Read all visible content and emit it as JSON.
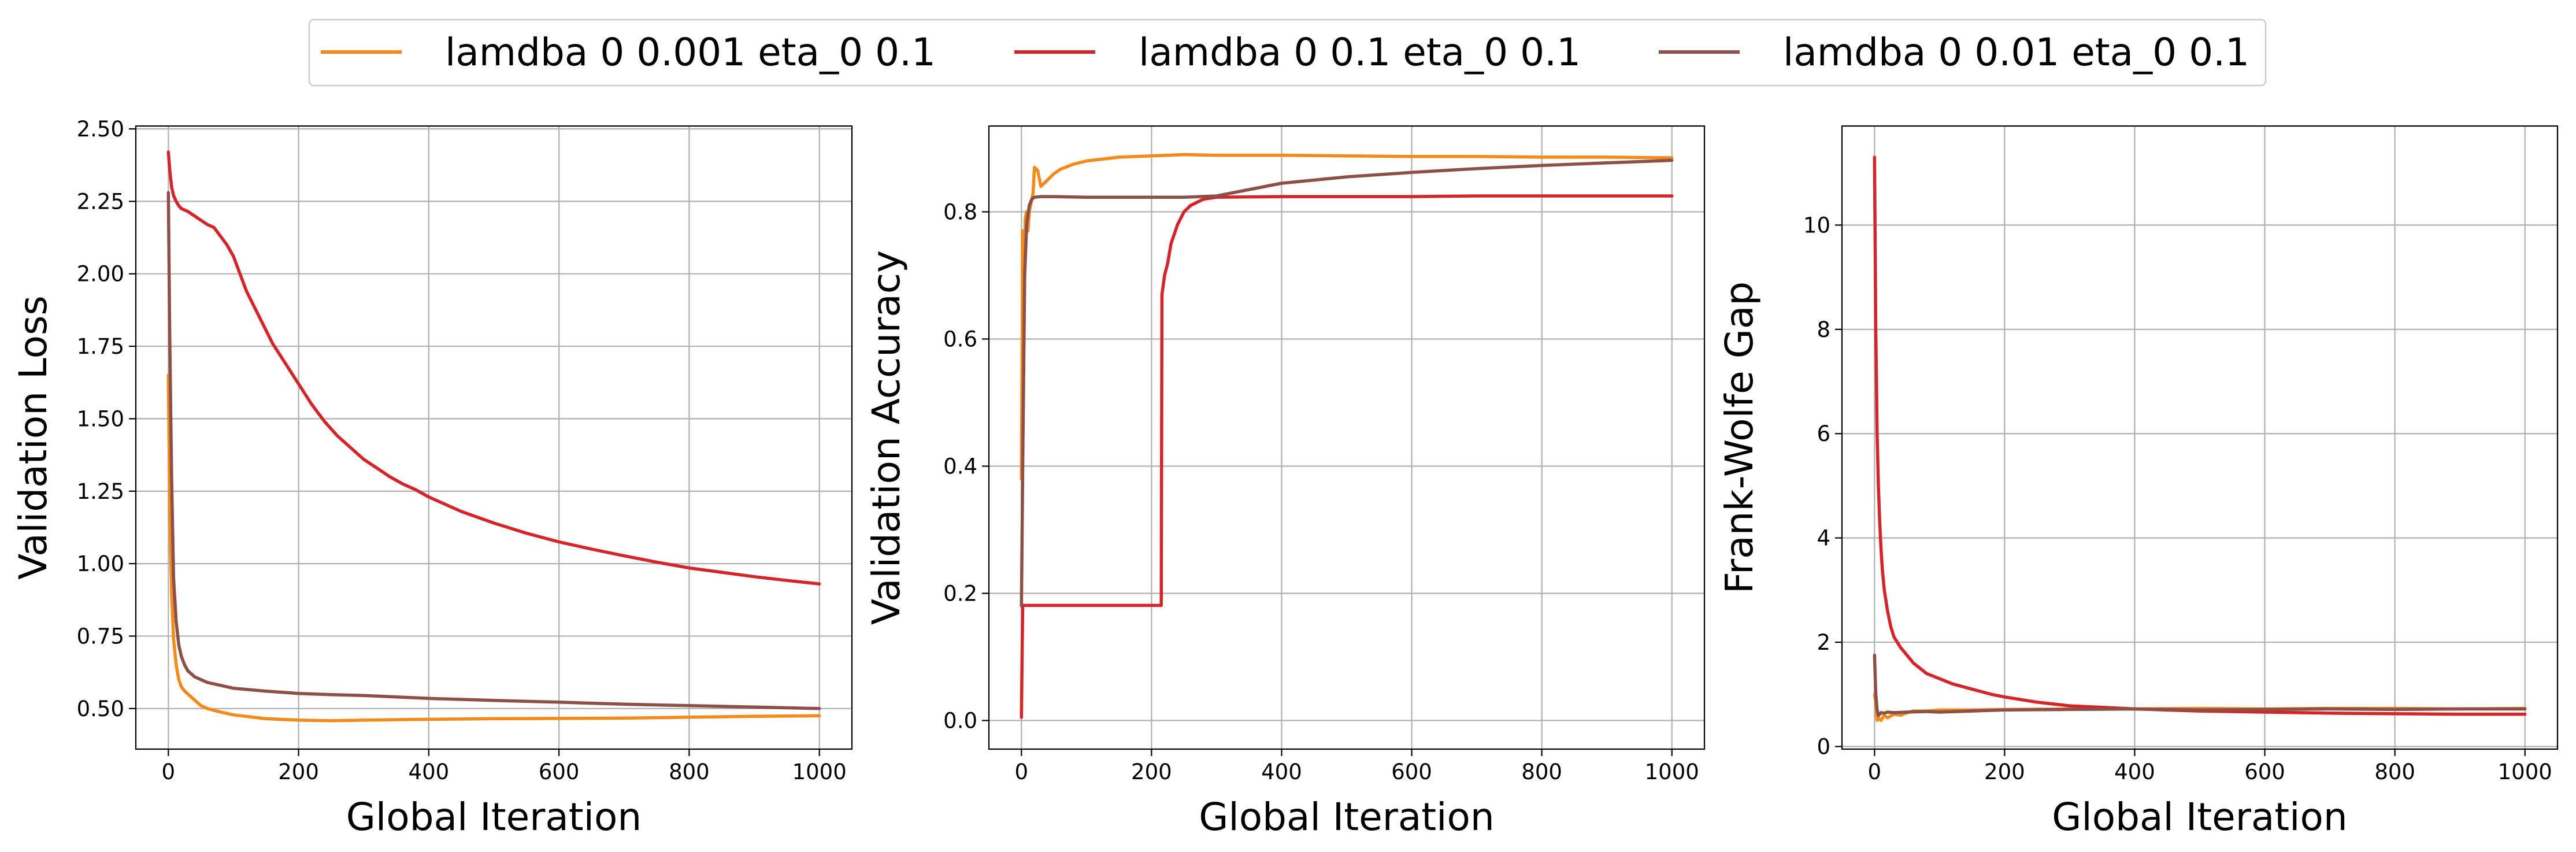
{
  "legend": {
    "entries": [
      {
        "label": "lamdba 0 0.001 eta_0 0.1",
        "color": "#f28a1e"
      },
      {
        "label": "lamdba 0 0.1 eta_0 0.1",
        "color": "#d1262a"
      },
      {
        "label": "lamdba 0 0.01 eta_0 0.1",
        "color": "#8c5048"
      }
    ]
  },
  "chart_data": [
    {
      "type": "line",
      "xlabel": "Global Iteration",
      "ylabel": "Validation Loss",
      "xlim": [
        -50,
        1050
      ],
      "ylim": [
        0.36,
        2.51
      ],
      "xticks": [
        0,
        200,
        400,
        600,
        800,
        1000
      ],
      "yticks": [
        0.5,
        0.75,
        1.0,
        1.25,
        1.5,
        1.75,
        2.0,
        2.25,
        2.5
      ],
      "ytick_labels": [
        "0.50",
        "0.75",
        "1.00",
        "1.25",
        "1.50",
        "1.75",
        "2.00",
        "2.25",
        "2.50"
      ],
      "grid": true,
      "series": [
        {
          "name": "lamdba 0 0.001 eta_0 0.1",
          "color": "#f28a1e",
          "x": [
            0,
            2,
            5,
            8,
            12,
            16,
            20,
            25,
            30,
            40,
            50,
            60,
            80,
            100,
            150,
            200,
            250,
            300,
            400,
            500,
            600,
            700,
            800,
            900,
            1000
          ],
          "y": [
            1.65,
            1.2,
            0.9,
            0.74,
            0.65,
            0.6,
            0.575,
            0.56,
            0.55,
            0.53,
            0.51,
            0.5,
            0.488,
            0.478,
            0.465,
            0.46,
            0.458,
            0.46,
            0.463,
            0.465,
            0.466,
            0.467,
            0.47,
            0.473,
            0.475
          ]
        },
        {
          "name": "lamdba 0 0.1 eta_0 0.1",
          "color": "#d1262a",
          "x": [
            0,
            2,
            5,
            8,
            12,
            16,
            20,
            30,
            40,
            50,
            60,
            70,
            80,
            90,
            100,
            110,
            120,
            140,
            160,
            180,
            200,
            220,
            240,
            260,
            280,
            300,
            320,
            340,
            360,
            380,
            400,
            450,
            500,
            550,
            600,
            650,
            700,
            750,
            800,
            850,
            900,
            950,
            1000
          ],
          "y": [
            2.42,
            2.36,
            2.3,
            2.27,
            2.25,
            2.235,
            2.225,
            2.215,
            2.2,
            2.185,
            2.17,
            2.16,
            2.13,
            2.1,
            2.06,
            2.0,
            1.94,
            1.85,
            1.76,
            1.69,
            1.62,
            1.55,
            1.49,
            1.44,
            1.4,
            1.36,
            1.33,
            1.3,
            1.275,
            1.255,
            1.23,
            1.18,
            1.14,
            1.105,
            1.075,
            1.05,
            1.027,
            1.005,
            0.985,
            0.97,
            0.955,
            0.942,
            0.93
          ]
        },
        {
          "name": "lamdba 0 0.01 eta_0 0.1",
          "color": "#8c5048",
          "x": [
            0,
            2,
            5,
            8,
            12,
            16,
            20,
            25,
            30,
            40,
            50,
            60,
            80,
            100,
            150,
            200,
            250,
            300,
            400,
            500,
            600,
            700,
            800,
            900,
            1000
          ],
          "y": [
            2.28,
            1.8,
            1.3,
            0.95,
            0.8,
            0.72,
            0.68,
            0.65,
            0.63,
            0.61,
            0.6,
            0.59,
            0.58,
            0.57,
            0.56,
            0.552,
            0.548,
            0.545,
            0.535,
            0.528,
            0.522,
            0.515,
            0.51,
            0.505,
            0.5
          ]
        }
      ]
    },
    {
      "type": "line",
      "xlabel": "Global Iteration",
      "ylabel": "Validation Accuracy",
      "xlim": [
        -50,
        1050
      ],
      "ylim": [
        -0.045,
        0.935
      ],
      "xticks": [
        0,
        200,
        400,
        600,
        800,
        1000
      ],
      "yticks": [
        0.0,
        0.2,
        0.4,
        0.6,
        0.8
      ],
      "ytick_labels": [
        "0.0",
        "0.2",
        "0.4",
        "0.6",
        "0.8"
      ],
      "grid": true,
      "series": [
        {
          "name": "lamdba 0 0.001 eta_0 0.1",
          "color": "#f28a1e",
          "x": [
            0,
            2,
            4,
            6,
            8,
            10,
            12,
            14,
            16,
            18,
            20,
            25,
            30,
            40,
            50,
            60,
            80,
            100,
            150,
            200,
            250,
            300,
            400,
            500,
            600,
            700,
            800,
            900,
            1000
          ],
          "y": [
            0.38,
            0.77,
            0.62,
            0.79,
            0.8,
            0.77,
            0.8,
            0.81,
            0.82,
            0.83,
            0.87,
            0.865,
            0.84,
            0.85,
            0.86,
            0.867,
            0.875,
            0.88,
            0.886,
            0.888,
            0.89,
            0.889,
            0.889,
            0.888,
            0.887,
            0.887,
            0.886,
            0.886,
            0.885
          ]
        },
        {
          "name": "lamdba 0 0.1 eta_0 0.1",
          "color": "#d1262a",
          "x": [
            0,
            1,
            2,
            3,
            5,
            10,
            50,
            100,
            150,
            200,
            215,
            216,
            220,
            225,
            230,
            240,
            250,
            260,
            270,
            280,
            300,
            400,
            500,
            600,
            700,
            800,
            900,
            1000
          ],
          "y": [
            0.005,
            0.1,
            0.181,
            0.181,
            0.181,
            0.181,
            0.181,
            0.181,
            0.181,
            0.181,
            0.181,
            0.67,
            0.7,
            0.72,
            0.75,
            0.78,
            0.8,
            0.81,
            0.815,
            0.82,
            0.823,
            0.824,
            0.824,
            0.824,
            0.825,
            0.825,
            0.825,
            0.825
          ]
        },
        {
          "name": "lamdba 0 0.01 eta_0 0.1",
          "color": "#8c5048",
          "x": [
            0,
            2,
            5,
            8,
            12,
            16,
            20,
            30,
            50,
            100,
            150,
            200,
            250,
            300,
            350,
            400,
            500,
            600,
            700,
            800,
            900,
            1000
          ],
          "y": [
            0.18,
            0.4,
            0.7,
            0.78,
            0.81,
            0.82,
            0.823,
            0.824,
            0.824,
            0.823,
            0.823,
            0.823,
            0.823,
            0.825,
            0.835,
            0.845,
            0.855,
            0.862,
            0.868,
            0.873,
            0.877,
            0.881
          ]
        }
      ]
    },
    {
      "type": "line",
      "xlabel": "Global Iteration",
      "ylabel": "Frank-Wolfe Gap",
      "xlim": [
        -50,
        1050
      ],
      "ylim": [
        -0.05,
        11.9
      ],
      "xticks": [
        0,
        200,
        400,
        600,
        800,
        1000
      ],
      "yticks": [
        0,
        2,
        4,
        6,
        8,
        10
      ],
      "ytick_labels": [
        "0",
        "2",
        "4",
        "6",
        "8",
        "10"
      ],
      "grid": true,
      "series": [
        {
          "name": "lamdba 0 0.001 eta_0 0.1",
          "color": "#f28a1e",
          "x": [
            0,
            2,
            4,
            6,
            10,
            15,
            20,
            30,
            40,
            50,
            60,
            80,
            100,
            150,
            200,
            300,
            400,
            500,
            600,
            700,
            800,
            900,
            1000
          ],
          "y": [
            1.0,
            0.85,
            0.5,
            0.55,
            0.5,
            0.6,
            0.55,
            0.62,
            0.6,
            0.65,
            0.68,
            0.68,
            0.7,
            0.7,
            0.71,
            0.72,
            0.72,
            0.73,
            0.72,
            0.73,
            0.73,
            0.72,
            0.73
          ]
        },
        {
          "name": "lamdba 0 0.1 eta_0 0.1",
          "color": "#d1262a",
          "x": [
            0,
            2,
            4,
            6,
            8,
            10,
            12,
            15,
            20,
            25,
            30,
            40,
            50,
            60,
            80,
            100,
            120,
            150,
            180,
            200,
            250,
            300,
            350,
            400,
            500,
            600,
            700,
            800,
            900,
            1000
          ],
          "y": [
            11.3,
            8.0,
            6.0,
            5.0,
            4.3,
            3.8,
            3.4,
            3.0,
            2.6,
            2.3,
            2.1,
            1.9,
            1.75,
            1.6,
            1.4,
            1.3,
            1.2,
            1.1,
            1.0,
            0.95,
            0.85,
            0.78,
            0.75,
            0.72,
            0.68,
            0.66,
            0.64,
            0.63,
            0.62,
            0.62
          ]
        },
        {
          "name": "lamdba 0 0.01 eta_0 0.1",
          "color": "#8c5048",
          "x": [
            0,
            2,
            4,
            6,
            8,
            10,
            15,
            20,
            30,
            50,
            80,
            100,
            150,
            200,
            300,
            400,
            500,
            600,
            700,
            800,
            900,
            1000
          ],
          "y": [
            1.75,
            1.0,
            0.7,
            0.6,
            0.62,
            0.65,
            0.64,
            0.66,
            0.65,
            0.66,
            0.67,
            0.66,
            0.68,
            0.7,
            0.71,
            0.72,
            0.7,
            0.71,
            0.72,
            0.71,
            0.72,
            0.72
          ]
        }
      ]
    }
  ]
}
